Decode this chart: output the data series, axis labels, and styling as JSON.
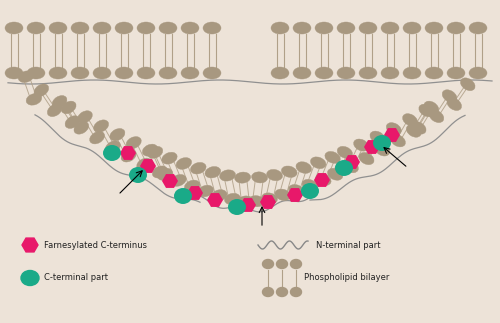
{
  "bg_color": "#ede3d8",
  "head_color": "#a89880",
  "tail_color": "#b0a088",
  "farnesyl_color": "#e8186a",
  "cterm_color": "#1aaa88",
  "line_color": "#888888",
  "text_color": "#222222",
  "fig_w": 5.0,
  "fig_h": 3.23,
  "dpi": 100,
  "xlim": [
    0,
    500
  ],
  "ylim": [
    0,
    323
  ]
}
